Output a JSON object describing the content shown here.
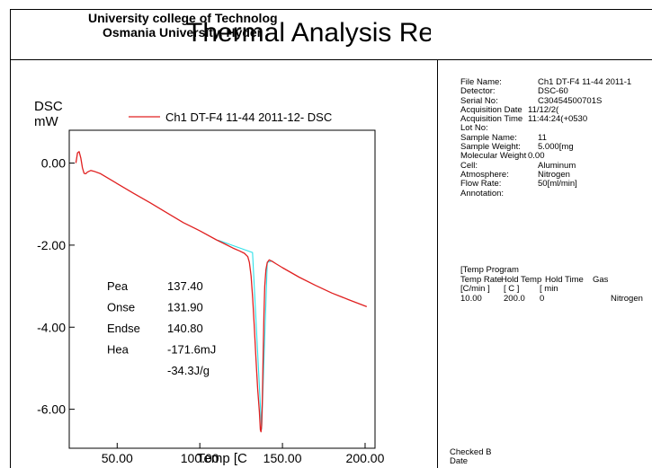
{
  "header": {
    "org_line1": "University college of Technolog",
    "org_line2": "Osmania University, Hyder",
    "report_title": "Thermal Analysis Re"
  },
  "chart_data": {
    "type": "line",
    "ylabel_line1": "DSC",
    "ylabel_line2": "mW",
    "xlabel": "Temp [C",
    "xlim": [
      21,
      206
    ],
    "ylim": [
      -6.95,
      0.8
    ],
    "x_ticks": [
      50,
      100,
      150,
      200
    ],
    "x_tick_labels": [
      "50.00",
      "100.00",
      "150.00",
      "200.00"
    ],
    "y_ticks": [
      0,
      -2,
      -4,
      -6
    ],
    "y_tick_labels": [
      "0.00",
      "-2.00",
      "-4.00",
      "-6.00"
    ],
    "legend": "Ch1 DT-F4 11-44 2011-12- DSC",
    "legend_position": "top",
    "grid": false,
    "series": [
      {
        "color": "#e02020",
        "x": [
          25,
          26,
          27,
          28,
          29,
          30,
          31,
          32,
          34,
          36,
          40,
          50,
          60,
          70,
          80,
          90,
          100,
          110,
          115,
          120,
          124,
          127,
          129,
          130,
          131,
          132,
          133,
          134,
          135,
          136,
          136.6,
          137.0,
          137.4,
          137.8,
          138.3,
          138.8,
          139.3,
          140.0,
          140.8,
          142.0,
          144,
          146,
          150,
          160,
          170,
          180,
          190,
          201
        ],
        "y": [
          0.0,
          0.25,
          0.28,
          0.12,
          -0.12,
          -0.25,
          -0.26,
          -0.22,
          -0.18,
          -0.2,
          -0.26,
          -0.5,
          -0.74,
          -0.97,
          -1.21,
          -1.45,
          -1.65,
          -1.87,
          -1.97,
          -2.07,
          -2.14,
          -2.2,
          -2.28,
          -2.42,
          -2.75,
          -3.3,
          -4.0,
          -4.8,
          -5.5,
          -6.05,
          -6.5,
          -6.55,
          -6.4,
          -5.8,
          -4.7,
          -3.7,
          -3.0,
          -2.6,
          -2.42,
          -2.36,
          -2.4,
          -2.45,
          -2.55,
          -2.78,
          -2.98,
          -3.17,
          -3.33,
          -3.5
        ]
      }
    ],
    "baseline": {
      "color": "#2ee0e8",
      "x": [
        111,
        131.9,
        137.4,
        140.8,
        144
      ],
      "y": [
        -1.88,
        -2.18,
        -6.5,
        -2.42,
        -2.38
      ]
    },
    "peak_table": {
      "rows": [
        {
          "label": "Pea",
          "value": "137.40"
        },
        {
          "label": "Onse",
          "value": "131.90"
        },
        {
          "label": "Endse",
          "value": "140.80"
        },
        {
          "label": "Hea",
          "value": "-171.6mJ"
        },
        {
          "label": "",
          "value": "-34.3J/g"
        }
      ]
    }
  },
  "info": {
    "rows": [
      {
        "key": "File Name:",
        "value": "Ch1 DT-F4 11-44 2011-1"
      },
      {
        "key": "Detector:",
        "value": "DSC-60"
      },
      {
        "key": "Serial No:",
        "value": "C30454500701S"
      },
      {
        "key": "Acquisition Date",
        "value": "11/12/2("
      },
      {
        "key": "Acquisition Time",
        "value": "11:44:24(+0530"
      },
      {
        "key": "Lot No:",
        "value": ""
      },
      {
        "key": "Sample Name:",
        "value": "11"
      },
      {
        "key": "Sample Weight:",
        "value": "5.000[mg"
      },
      {
        "key": "Molecular Weight",
        "value": "0.00"
      },
      {
        "key": "Cell:",
        "value": "Aluminum"
      },
      {
        "key": "Atmosphere:",
        "value": "Nitrogen"
      },
      {
        "key": "Flow Rate:",
        "value": "50[ml/min]"
      },
      {
        "key": "Annotation:",
        "value": ""
      }
    ]
  },
  "temp_program": {
    "title": "[Temp Program",
    "headers": [
      "Temp Rate",
      "Hold Temp",
      "Hold Time",
      "Gas"
    ],
    "units": [
      "[C/min ]",
      "[ C ]",
      "[ min",
      ""
    ],
    "row": [
      "10.00",
      "200.0",
      "0",
      "Nitrogen"
    ]
  },
  "footer": {
    "checked_by": "Checked B",
    "date": "Date"
  }
}
